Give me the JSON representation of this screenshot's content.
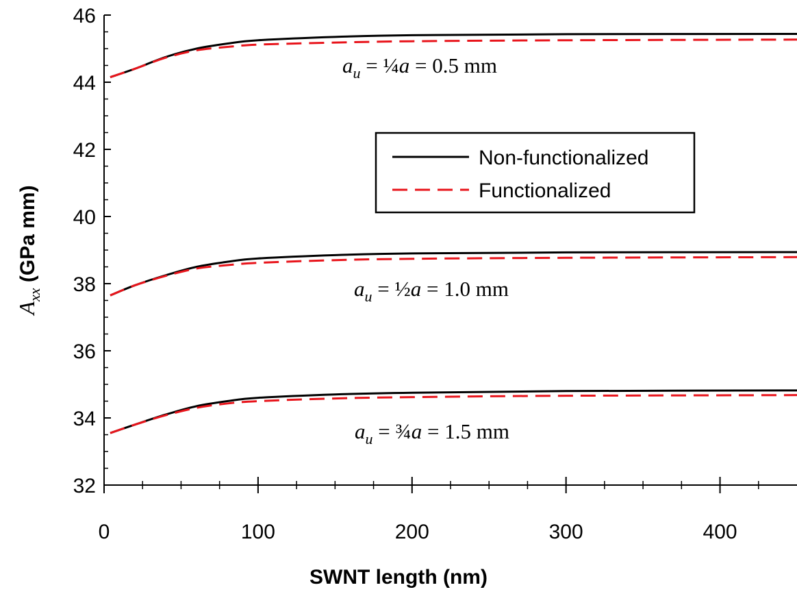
{
  "chart_data": {
    "type": "line",
    "title": "",
    "xlabel": "SWNT length (nm)",
    "ylabel": {
      "symbol": "A",
      "subscript": "xx",
      "unit": " (GPa mm)"
    },
    "xlim": [
      0,
      450
    ],
    "ylim": [
      32,
      46
    ],
    "x_ticks": [
      0,
      100,
      200,
      300,
      400
    ],
    "y_ticks": [
      32,
      34,
      36,
      38,
      40,
      42,
      44,
      46
    ],
    "legend": {
      "position": "center-right",
      "entries": [
        {
          "label": "Non-functionalized",
          "color": "#000000",
          "style": "solid"
        },
        {
          "label": "Functionalized",
          "color": "#e8141b",
          "style": "dashed"
        }
      ]
    },
    "x": [
      4,
      20,
      40,
      60,
      80,
      100,
      150,
      200,
      300,
      450
    ],
    "groups": [
      {
        "annotation": {
          "a": "a",
          "sub": "u",
          "eq": " = ",
          "frac": "¼",
          "a2": "a",
          "rest": " = 0.5 mm"
        },
        "series": [
          {
            "name": "Non-functionalized",
            "values": [
              44.15,
              44.4,
              44.75,
              45.0,
              45.15,
              45.25,
              45.35,
              45.4,
              45.43,
              45.44
            ]
          },
          {
            "name": "Functionalized",
            "values": [
              44.15,
              44.4,
              44.73,
              44.95,
              45.05,
              45.12,
              45.18,
              45.22,
              45.25,
              45.27
            ]
          }
        ]
      },
      {
        "annotation": {
          "a": "a",
          "sub": "u",
          "eq": " = ",
          "frac": "½",
          "a2": "a",
          "rest": " = 1.0 mm"
        },
        "series": [
          {
            "name": "Non-functionalized",
            "values": [
              37.65,
              37.95,
              38.25,
              38.5,
              38.65,
              38.75,
              38.85,
              38.9,
              38.93,
              38.94
            ]
          },
          {
            "name": "Functionalized",
            "values": [
              37.65,
              37.95,
              38.23,
              38.45,
              38.55,
              38.62,
              38.7,
              38.74,
              38.77,
              38.79
            ]
          }
        ]
      },
      {
        "annotation": {
          "a": "a",
          "sub": "u",
          "eq": " = ",
          "frac": "¾",
          "a2": "a",
          "rest": " = 1.5 mm"
        },
        "series": [
          {
            "name": "Non-functionalized",
            "values": [
              33.55,
              33.8,
              34.1,
              34.35,
              34.5,
              34.6,
              34.7,
              34.75,
              34.8,
              34.82
            ]
          },
          {
            "name": "Functionalized",
            "values": [
              33.55,
              33.8,
              34.08,
              34.3,
              34.43,
              34.5,
              34.58,
              34.62,
              34.66,
              34.68
            ]
          }
        ]
      }
    ]
  }
}
